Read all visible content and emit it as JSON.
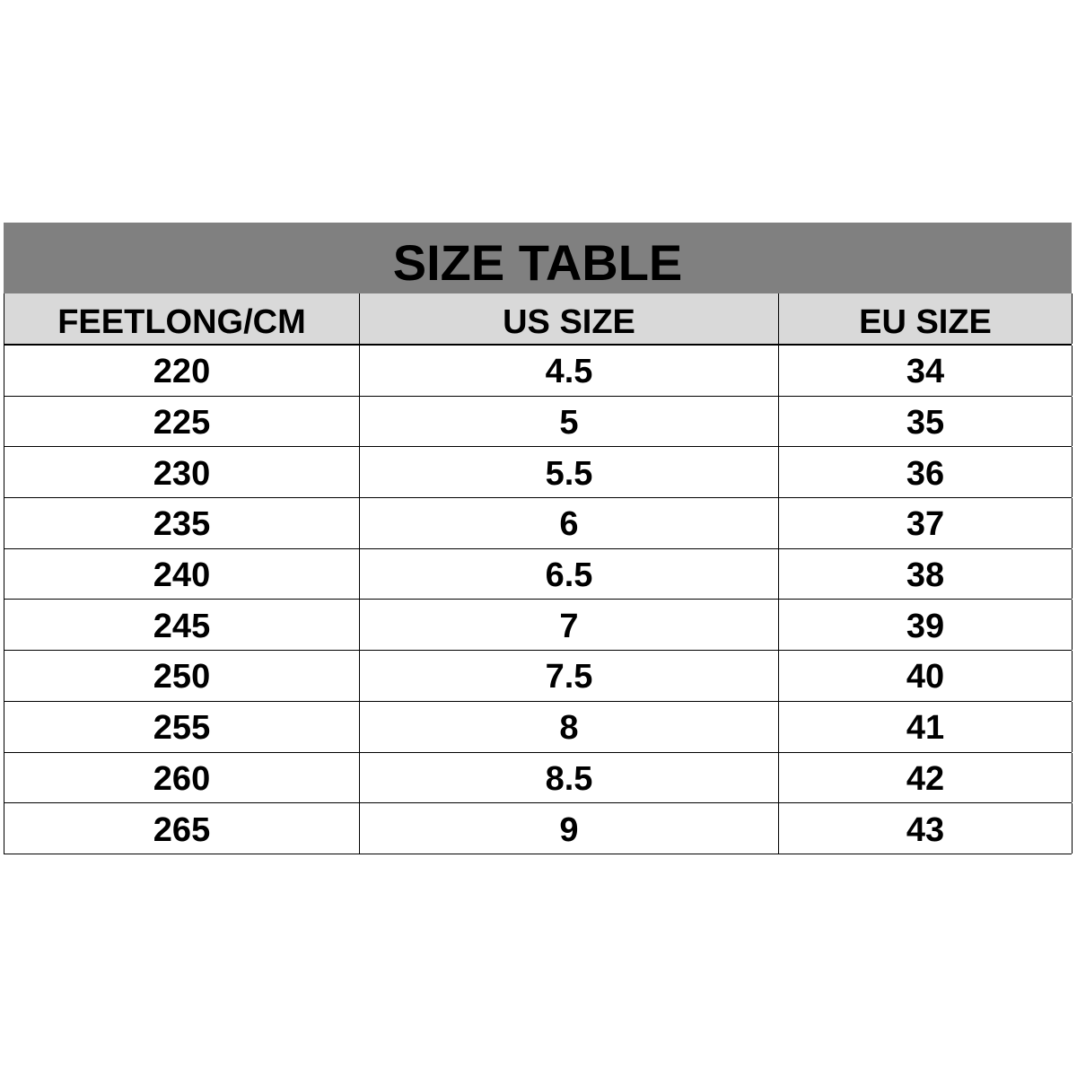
{
  "title": "SIZE TABLE",
  "colors": {
    "title_bg": "#808080",
    "header_bg": "#d9d9d9"
  },
  "headers": [
    "FEETLONG/CM",
    "US SIZE",
    "EU SIZE"
  ],
  "rows": [
    [
      "220",
      "4.5",
      "34"
    ],
    [
      "225",
      "5",
      "35"
    ],
    [
      "230",
      "5.5",
      "36"
    ],
    [
      "235",
      "6",
      "37"
    ],
    [
      "240",
      "6.5",
      "38"
    ],
    [
      "245",
      "7",
      "39"
    ],
    [
      "250",
      "7.5",
      "40"
    ],
    [
      "255",
      "8",
      "41"
    ],
    [
      "260",
      "8.5",
      "42"
    ],
    [
      "265",
      "9",
      "43"
    ]
  ]
}
